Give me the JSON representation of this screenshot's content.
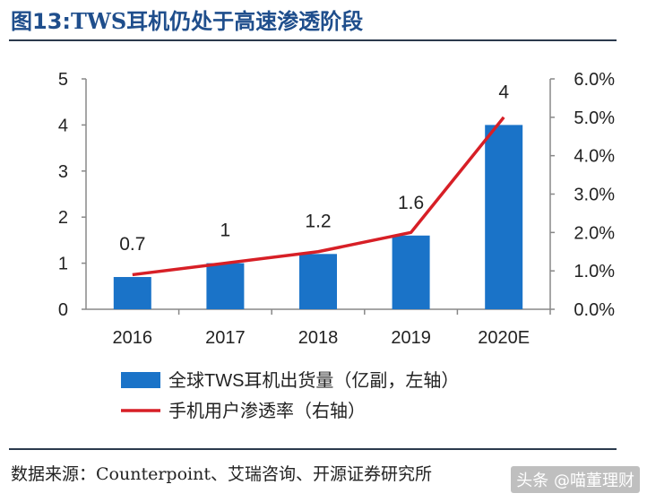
{
  "header": {
    "figure_label": "图13:",
    "title": "TWS耳机仍处于高速渗透阶段"
  },
  "chart_data": {
    "type": "bar",
    "categories": [
      "2016",
      "2017",
      "2018",
      "2019",
      "2020E"
    ],
    "series": [
      {
        "name": "全球TWS耳机出货量（亿副，左轴）",
        "type": "bar",
        "axis": "left",
        "color": "#1a73c8",
        "values": [
          0.7,
          1,
          1.2,
          1.6,
          4
        ],
        "labels": [
          "0.7",
          "1",
          "1.2",
          "1.6",
          "4"
        ]
      },
      {
        "name": "手机用户渗透率（右轴）",
        "type": "line",
        "axis": "right",
        "color": "#d71f26",
        "values": [
          0.9,
          1.2,
          1.5,
          2.0,
          5.0
        ]
      }
    ],
    "y_left": {
      "min": 0,
      "max": 5,
      "ticks": [
        "0",
        "1",
        "2",
        "3",
        "4",
        "5"
      ]
    },
    "y_right": {
      "min": 0,
      "max": 6,
      "ticks": [
        "0.0%",
        "1.0%",
        "2.0%",
        "3.0%",
        "4.0%",
        "5.0%",
        "6.0%"
      ]
    },
    "grid": false,
    "legend_position": "bottom"
  },
  "footer": {
    "source": "数据来源：Counterpoint、艾瑞咨询、开源证券研究所",
    "watermark": "头条 @喵董理财"
  }
}
